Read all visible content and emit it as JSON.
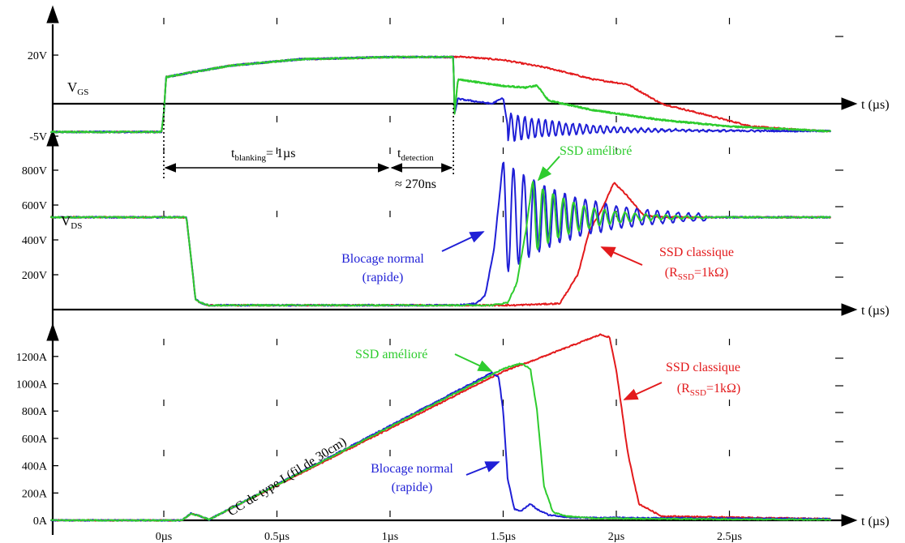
{
  "chart_data": [
    {
      "type": "line",
      "panel": "vgs",
      "signal_label": "V",
      "signal_subscript": "GS",
      "x_axis_label": "t (µs)",
      "xlim": [
        -0.5,
        2.95
      ],
      "ylim": [
        -5,
        20
      ],
      "y_ticks": [
        {
          "v": 20,
          "label": "20V"
        },
        {
          "v": -5,
          "label": "-5V"
        }
      ],
      "annotations": {
        "blanking_main": "t",
        "blanking_sub": "blanking",
        "blanking_rest": "= 1µs",
        "detection_main": "t",
        "detection_sub": "detection",
        "detection_value": "≈ 270ns",
        "blanking_start": 0,
        "blanking_end": 1.0,
        "detection_end": 1.28
      },
      "series": [
        {
          "color": "#e31a1c",
          "x": [
            -0.5,
            -0.01,
            0.0,
            0.01,
            0.1,
            0.3,
            0.6,
            1.0,
            1.28,
            1.32,
            1.5,
            1.7,
            1.9,
            2.05,
            2.2,
            2.4,
            2.6,
            2.8,
            2.95
          ],
          "y": [
            -3.7,
            -3.7,
            2,
            13.2,
            14.4,
            16.8,
            18.7,
            19.4,
            19.4,
            19.5,
            18.5,
            16,
            12.5,
            11,
            5,
            1.5,
            -2,
            -3,
            -3.5
          ]
        },
        {
          "color": "#2ecc2e",
          "x": [
            -0.5,
            -0.01,
            0.0,
            0.01,
            0.1,
            0.3,
            0.6,
            1.0,
            1.28,
            1.285,
            1.3,
            1.5,
            1.6,
            1.65,
            1.7,
            1.9,
            2.2,
            2.5,
            2.8,
            2.95
          ],
          "y": [
            -3.7,
            -3.7,
            2,
            13.2,
            14.4,
            16.8,
            18.7,
            19.4,
            19.4,
            2,
            12.5,
            10.5,
            10,
            10.6,
            6,
            3,
            0,
            -2,
            -3,
            -3.5
          ]
        }
      ],
      "blue_trace": {
        "color": "#1f1fd6",
        "x": [
          -0.5,
          -0.01,
          0.0,
          0.01,
          0.1,
          0.3,
          0.6,
          1.0,
          1.28,
          1.285,
          1.3,
          1.45,
          1.5,
          1.52
        ],
        "y": [
          -3.7,
          -3.7,
          2,
          13.2,
          14.4,
          16.8,
          18.7,
          19.4,
          19.4,
          2,
          6.5,
          5,
          6.8,
          -2
        ],
        "ringing": {
          "start": 1.52,
          "end": 2.1,
          "freq": 33,
          "amp0": 4.5,
          "decay": 3.5,
          "offset": -2.3
        }
      }
    },
    {
      "type": "line",
      "panel": "vds",
      "signal_label": "V",
      "signal_subscript": "DS",
      "x_axis_label": "t (µs)",
      "xlim": [
        -0.5,
        2.95
      ],
      "ylim": [
        0,
        900
      ],
      "y_ticks": [
        {
          "v": 800,
          "label": "800V"
        },
        {
          "v": 600,
          "label": "600V"
        },
        {
          "v": 400,
          "label": "400V"
        },
        {
          "v": 200,
          "label": "200V"
        }
      ],
      "annotations": {
        "blue_label_1": "Blocage normal",
        "blue_label_2": "(rapide)",
        "green_label": "SSD amélioré",
        "red_label_1": "SSD classique",
        "red_label_2_pre": "(R",
        "red_label_2_sub": "SSD",
        "red_label_2_post": "=1kΩ)"
      },
      "series": [
        {
          "name": "Blocage normal (rapide)",
          "color": "#1f1fd6",
          "x": [
            -0.5,
            0.1,
            0.12,
            0.14,
            0.16,
            0.2,
            1.3,
            1.38,
            1.42,
            1.46,
            1.5
          ],
          "y": [
            530,
            530,
            300,
            60,
            40,
            25,
            25,
            35,
            80,
            350,
            860
          ],
          "ringing": {
            "start": 1.5,
            "end": 2.4,
            "freq": 22,
            "amp0": 330,
            "decay": 3.2,
            "offset": 530
          }
        },
        {
          "name": "SSD amélioré",
          "color": "#2ecc2e",
          "x": [
            -0.5,
            0.1,
            0.12,
            0.14,
            0.16,
            0.2,
            1.45,
            1.52,
            1.56,
            1.6,
            1.63
          ],
          "y": [
            530,
            530,
            300,
            60,
            40,
            25,
            25,
            40,
            150,
            450,
            740
          ],
          "ringing": {
            "start": 1.63,
            "end": 2.4,
            "freq": 22,
            "amp0": 200,
            "decay": 5,
            "offset": 530
          }
        },
        {
          "name": "SSD classique",
          "color": "#e31a1c",
          "x": [
            -0.5,
            0.1,
            0.12,
            0.14,
            0.16,
            0.2,
            1.55,
            1.75,
            1.83,
            1.88,
            1.93,
            1.99,
            2.05,
            2.12,
            2.2,
            2.4,
            2.95
          ],
          "y": [
            530,
            530,
            300,
            60,
            40,
            25,
            25,
            35,
            200,
            450,
            560,
            730,
            650,
            540,
            530,
            530,
            530
          ]
        }
      ]
    },
    {
      "type": "line",
      "panel": "ic",
      "x_axis_label": "t (µs)",
      "xlim": [
        -0.5,
        2.95
      ],
      "ylim": [
        0,
        1400
      ],
      "x_ticks": [
        {
          "v": 0,
          "label": "0µs"
        },
        {
          "v": 0.5,
          "label": "0.5µs"
        },
        {
          "v": 1.0,
          "label": "1µs"
        },
        {
          "v": 1.5,
          "label": "1.5µs"
        },
        {
          "v": 2.0,
          "label": "2µs"
        },
        {
          "v": 2.5,
          "label": "2.5µs"
        }
      ],
      "y_ticks": [
        {
          "v": 1200,
          "label": "1200A"
        },
        {
          "v": 1000,
          "label": "1000A"
        },
        {
          "v": 800,
          "label": "800A"
        },
        {
          "v": 600,
          "label": "600A"
        },
        {
          "v": 400,
          "label": "400A"
        },
        {
          "v": 200,
          "label": "200A"
        },
        {
          "v": 0,
          "label": "0A"
        }
      ],
      "annotations": {
        "ramp_label": "CC de type I (fil de 30cm)",
        "blue_label_1": "Blocage normal",
        "blue_label_2": "(rapide)",
        "green_label": "SSD amélioré",
        "red_label_1": "SSD classique",
        "red_label_2_pre": "(R",
        "red_label_2_sub": "SSD",
        "red_label_2_post": "=1kΩ)"
      },
      "series": [
        {
          "name": "Blocage normal (rapide)",
          "color": "#1f1fd6",
          "x": [
            -0.5,
            0.08,
            0.12,
            0.16,
            0.2,
            1.45,
            1.48,
            1.5,
            1.52,
            1.55,
            1.58,
            1.62,
            1.65,
            1.7,
            1.75,
            1.8,
            2.95
          ],
          "y": [
            0,
            0,
            50,
            30,
            5,
            1080,
            1050,
            800,
            300,
            80,
            70,
            120,
            80,
            40,
            30,
            20,
            10
          ]
        },
        {
          "name": "SSD amélioré",
          "color": "#2ecc2e",
          "x": [
            -0.5,
            0.08,
            0.12,
            0.16,
            0.2,
            1.5,
            1.58,
            1.62,
            1.65,
            1.68,
            1.72,
            1.78,
            1.9,
            2.2,
            2.95
          ],
          "y": [
            0,
            0,
            50,
            30,
            5,
            1110,
            1150,
            1110,
            800,
            250,
            60,
            30,
            15,
            10,
            5
          ]
        },
        {
          "name": "SSD classique",
          "color": "#e31a1c",
          "x": [
            -0.5,
            0.08,
            0.12,
            0.16,
            0.2,
            1.5,
            1.6,
            1.93,
            1.97,
            2.0,
            2.05,
            2.1,
            2.2,
            2.95
          ],
          "y": [
            0,
            0,
            50,
            30,
            5,
            1090,
            1150,
            1360,
            1340,
            1100,
            500,
            120,
            30,
            10
          ]
        }
      ]
    }
  ]
}
